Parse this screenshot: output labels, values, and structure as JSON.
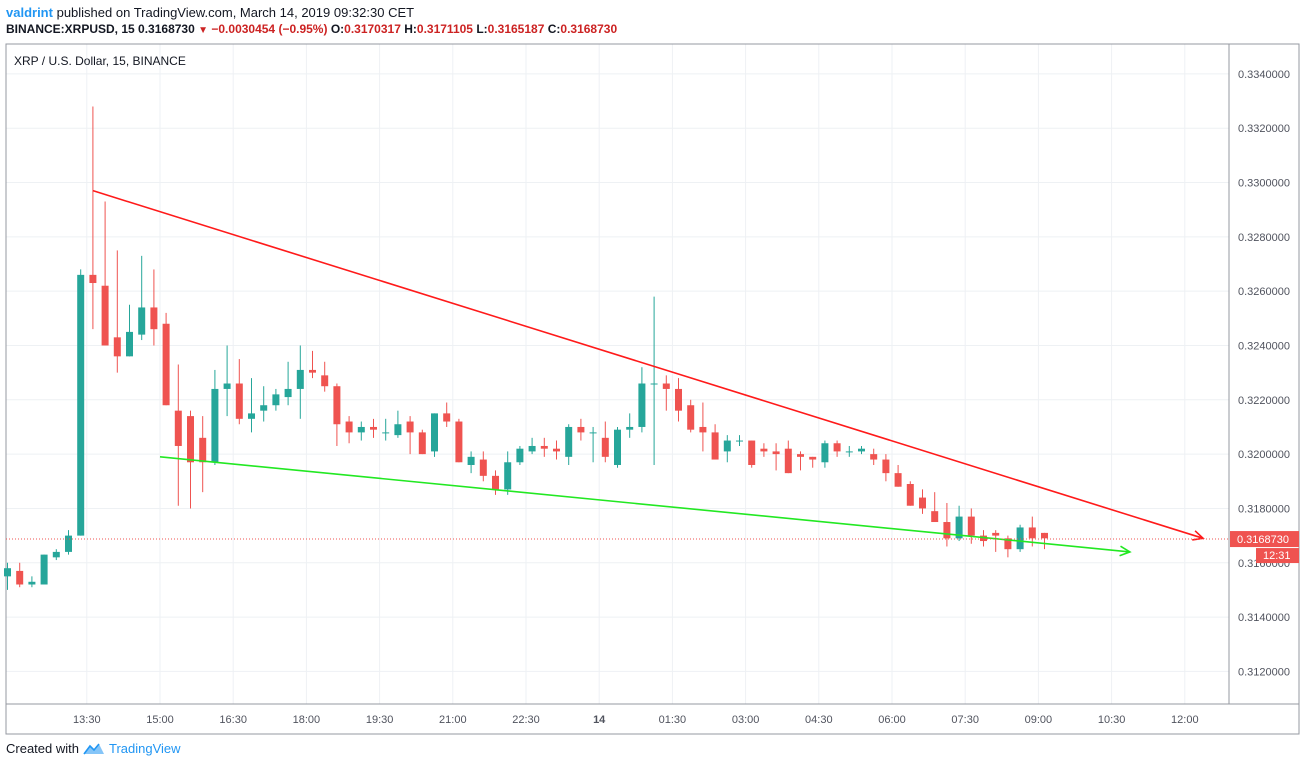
{
  "header": {
    "user": "valdrint",
    "published": "published on TradingView.com, March 14, 2019 09:32:30 CET",
    "symbol": "BINANCE:XRPUSD, 15",
    "last": "0.3168730",
    "change": "−0.0030454 (−0.95%)",
    "o_label": "O:",
    "o_val": "0.3170317",
    "h_label": "H:",
    "h_val": "0.3171105",
    "l_label": "L:",
    "l_val": "0.3165187",
    "c_label": "C:",
    "c_val": "0.3168730"
  },
  "footer": {
    "created": "Created with",
    "brand": "TradingView"
  },
  "colors": {
    "up": "#26a69a",
    "down": "#ef5350",
    "resistance": "#ff1a1a",
    "support": "#22e822",
    "price_line": "#ef5350",
    "grid": "#eef1f4"
  },
  "chart_data": {
    "type": "candlestick",
    "title": "XRP / U.S. Dollar, 15, BINANCE",
    "ylim": [
      0.3108,
      0.3351
    ],
    "y_ticks": [
      "0.3120000",
      "0.3140000",
      "0.3160000",
      "0.3180000",
      "0.3200000",
      "0.3220000",
      "0.3240000",
      "0.3260000",
      "0.3280000",
      "0.3300000",
      "0.3320000",
      "0.3340000"
    ],
    "x_ticks": [
      "13:30",
      "15:00",
      "16:30",
      "18:00",
      "19:30",
      "21:00",
      "22:30",
      "14",
      "01:30",
      "03:00",
      "04:30",
      "06:00",
      "07:30",
      "09:00",
      "10:30",
      "12:00"
    ],
    "x_ticks_index": [
      6.5,
      12.5,
      18.5,
      24.5,
      30.5,
      36.5,
      42.5,
      48.5,
      54.5,
      60.5,
      66.5,
      72.5,
      78.5,
      84.5,
      90.5,
      96.5
    ],
    "candles": [
      [
        0.3155,
        0.316,
        0.315,
        0.3158
      ],
      [
        0.3157,
        0.316,
        0.3151,
        0.3152
      ],
      [
        0.3152,
        0.3155,
        0.3151,
        0.3153
      ],
      [
        0.3152,
        0.3163,
        0.3152,
        0.3163
      ],
      [
        0.3162,
        0.3165,
        0.3161,
        0.3164
      ],
      [
        0.3164,
        0.3172,
        0.3163,
        0.317
      ],
      [
        0.317,
        0.3268,
        0.317,
        0.3266
      ],
      [
        0.3266,
        0.3328,
        0.3246,
        0.3263
      ],
      [
        0.3262,
        0.3293,
        0.324,
        0.324
      ],
      [
        0.3243,
        0.3275,
        0.323,
        0.3236
      ],
      [
        0.3236,
        0.3255,
        0.3236,
        0.3245
      ],
      [
        0.3244,
        0.3273,
        0.3242,
        0.3254
      ],
      [
        0.3254,
        0.3268,
        0.324,
        0.3246
      ],
      [
        0.3248,
        0.3252,
        0.3218,
        0.3218
      ],
      [
        0.3216,
        0.3233,
        0.3181,
        0.3203
      ],
      [
        0.3214,
        0.3216,
        0.318,
        0.3197
      ],
      [
        0.3206,
        0.3214,
        0.3186,
        0.3197
      ],
      [
        0.3197,
        0.3231,
        0.3196,
        0.3224
      ],
      [
        0.3224,
        0.324,
        0.3214,
        0.3226
      ],
      [
        0.3226,
        0.3235,
        0.3211,
        0.3213
      ],
      [
        0.3213,
        0.3228,
        0.3208,
        0.3215
      ],
      [
        0.3216,
        0.3225,
        0.3212,
        0.3218
      ],
      [
        0.3218,
        0.3224,
        0.3216,
        0.3222
      ],
      [
        0.3221,
        0.3234,
        0.3218,
        0.3224
      ],
      [
        0.3224,
        0.324,
        0.3213,
        0.3231
      ],
      [
        0.3231,
        0.3238,
        0.3228,
        0.323
      ],
      [
        0.3229,
        0.3234,
        0.3223,
        0.3225
      ],
      [
        0.3225,
        0.3226,
        0.3203,
        0.3211
      ],
      [
        0.3212,
        0.3214,
        0.3204,
        0.3208
      ],
      [
        0.3208,
        0.3212,
        0.3205,
        0.321
      ],
      [
        0.321,
        0.3213,
        0.3206,
        0.3209
      ],
      [
        0.3208,
        0.3213,
        0.3205,
        0.3208
      ],
      [
        0.3207,
        0.3216,
        0.3206,
        0.3211
      ],
      [
        0.3212,
        0.3214,
        0.32,
        0.3208
      ],
      [
        0.3208,
        0.3209,
        0.32,
        0.32
      ],
      [
        0.3201,
        0.3215,
        0.3199,
        0.3215
      ],
      [
        0.3215,
        0.3219,
        0.321,
        0.3212
      ],
      [
        0.3212,
        0.3213,
        0.3197,
        0.3197
      ],
      [
        0.3196,
        0.3201,
        0.3193,
        0.3199
      ],
      [
        0.3198,
        0.3201,
        0.319,
        0.3192
      ],
      [
        0.3192,
        0.3194,
        0.3185,
        0.3187
      ],
      [
        0.3187,
        0.3201,
        0.3185,
        0.3197
      ],
      [
        0.3197,
        0.3203,
        0.3196,
        0.3202
      ],
      [
        0.3201,
        0.3206,
        0.32,
        0.3203
      ],
      [
        0.3203,
        0.3206,
        0.3199,
        0.3202
      ],
      [
        0.3202,
        0.3205,
        0.3198,
        0.3201
      ],
      [
        0.3199,
        0.3211,
        0.3196,
        0.321
      ],
      [
        0.321,
        0.3213,
        0.3205,
        0.3208
      ],
      [
        0.3208,
        0.321,
        0.3197,
        0.3208
      ],
      [
        0.3206,
        0.3212,
        0.3197,
        0.3199
      ],
      [
        0.3196,
        0.321,
        0.3195,
        0.3209
      ],
      [
        0.3209,
        0.3215,
        0.3206,
        0.321
      ],
      [
        0.321,
        0.3232,
        0.3208,
        0.3226
      ],
      [
        0.3226,
        0.3258,
        0.3196,
        0.3226
      ],
      [
        0.3226,
        0.3229,
        0.3216,
        0.3224
      ],
      [
        0.3224,
        0.3228,
        0.3212,
        0.3216
      ],
      [
        0.3218,
        0.322,
        0.3208,
        0.3209
      ],
      [
        0.321,
        0.3219,
        0.3201,
        0.3208
      ],
      [
        0.3208,
        0.3211,
        0.3199,
        0.3198
      ],
      [
        0.3201,
        0.3207,
        0.3197,
        0.3205
      ],
      [
        0.3205,
        0.3207,
        0.3203,
        0.3205
      ],
      [
        0.3205,
        0.3205,
        0.3195,
        0.3196
      ],
      [
        0.3202,
        0.3204,
        0.3199,
        0.3201
      ],
      [
        0.3201,
        0.3204,
        0.3194,
        0.32
      ],
      [
        0.3202,
        0.3205,
        0.3193,
        0.3193
      ],
      [
        0.32,
        0.3201,
        0.3194,
        0.3199
      ],
      [
        0.3199,
        0.3199,
        0.3195,
        0.3198
      ],
      [
        0.3197,
        0.3205,
        0.3195,
        0.3204
      ],
      [
        0.3204,
        0.3205,
        0.3199,
        0.3201
      ],
      [
        0.3201,
        0.3203,
        0.3199,
        0.3201
      ],
      [
        0.3201,
        0.3203,
        0.32,
        0.3202
      ],
      [
        0.32,
        0.3202,
        0.3196,
        0.3198
      ],
      [
        0.3198,
        0.32,
        0.319,
        0.3193
      ],
      [
        0.3193,
        0.3196,
        0.3188,
        0.3188
      ],
      [
        0.3189,
        0.319,
        0.3181,
        0.3181
      ],
      [
        0.3184,
        0.3187,
        0.3178,
        0.318
      ],
      [
        0.3179,
        0.3186,
        0.3176,
        0.3175
      ],
      [
        0.3175,
        0.3182,
        0.3166,
        0.3169
      ],
      [
        0.3169,
        0.3181,
        0.3168,
        0.3177
      ],
      [
        0.3177,
        0.318,
        0.3167,
        0.317
      ],
      [
        0.317,
        0.3172,
        0.3166,
        0.3168
      ],
      [
        0.3171,
        0.3172,
        0.3164,
        0.317
      ],
      [
        0.3169,
        0.317,
        0.3162,
        0.3165
      ],
      [
        0.3165,
        0.3174,
        0.3164,
        0.3173
      ],
      [
        0.3173,
        0.3177,
        0.3166,
        0.3169
      ],
      [
        0.3171,
        0.3171,
        0.3165,
        0.3169
      ]
    ],
    "candle_index_map": [
      0,
      1,
      2,
      3,
      4,
      5,
      6,
      7,
      8,
      9,
      10,
      11,
      12,
      13,
      14,
      15,
      16,
      17,
      18,
      19,
      20,
      21,
      22,
      23,
      24,
      25,
      26,
      27,
      28,
      29,
      30,
      31,
      32,
      33,
      34,
      35,
      36,
      37,
      38,
      39,
      40,
      41,
      42,
      43,
      44,
      45,
      46,
      47,
      48,
      49,
      50,
      51,
      52,
      53,
      54,
      55,
      56,
      57,
      58,
      59,
      60,
      61,
      62,
      63,
      64,
      65,
      66,
      67,
      68,
      69,
      70,
      71,
      72,
      73,
      74,
      75,
      76,
      77,
      78,
      79,
      80,
      81,
      82,
      83,
      84,
      85
    ],
    "last_price": "0.3168730",
    "last_value": 0.316873,
    "countdown": "12:31",
    "trendlines": [
      {
        "name": "resistance",
        "from": [
          7,
          0.3297
        ],
        "to": [
          98,
          0.3169
        ],
        "arrow": true
      },
      {
        "name": "support",
        "from": [
          12.5,
          0.3199
        ],
        "to": [
          92,
          0.3164
        ],
        "arrow": true
      }
    ]
  }
}
